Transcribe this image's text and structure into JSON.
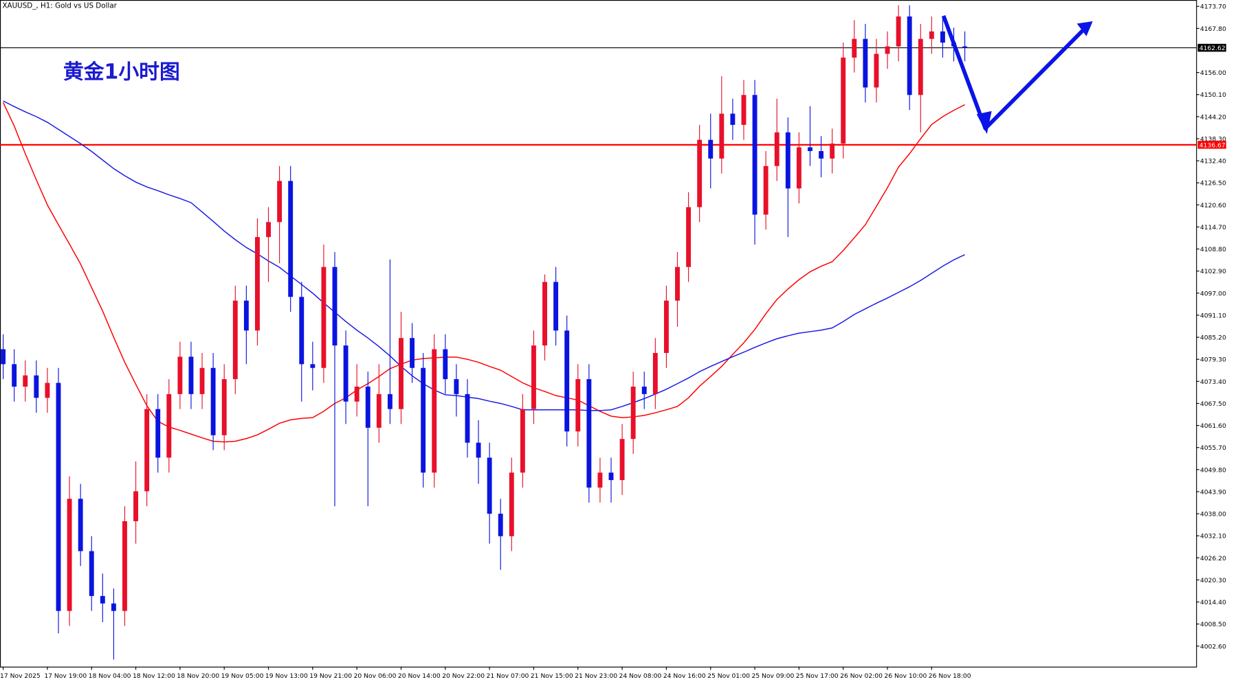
{
  "chart_data": {
    "type": "candlestick",
    "title": "XAUUSD_, H1:  Gold vs US Dollar",
    "annotation": "黄金1小时图",
    "categories": [
      "17 Nov 2025",
      null,
      null,
      null,
      "17 Nov 19:00",
      null,
      null,
      null,
      "18 Nov 04:00",
      null,
      null,
      null,
      "18 Nov 12:00",
      null,
      null,
      null,
      "18 Nov 20:00",
      null,
      null,
      null,
      "19 Nov 05:00",
      null,
      null,
      null,
      "19 Nov 13:00",
      null,
      null,
      null,
      "19 Nov 21:00",
      null,
      null,
      null,
      "20 Nov 06:00",
      null,
      null,
      null,
      "20 Nov 14:00",
      null,
      null,
      null,
      "20 Nov 22:00",
      null,
      null,
      null,
      "21 Nov 07:00",
      null,
      null,
      null,
      "21 Nov 15:00",
      null,
      null,
      null,
      "21 Nov 23:00",
      null,
      null,
      null,
      "24 Nov 08:00",
      null,
      null,
      null,
      "24 Nov 16:00",
      null,
      null,
      null,
      "25 Nov 01:00",
      null,
      null,
      null,
      "25 Nov 09:00",
      null,
      null,
      null,
      "25 Nov 17:00",
      null,
      null,
      null,
      "26 Nov 02:00",
      null,
      null,
      null,
      "26 Nov 10:00",
      null,
      null,
      null,
      "26 Nov 18:00",
      null,
      null,
      null
    ],
    "open": [
      4082,
      4078,
      4072,
      4075,
      4069,
      4073,
      4012,
      4042,
      4028,
      4016,
      4014,
      4012,
      4036,
      4044,
      4066,
      4053,
      4070,
      4080,
      4070,
      4077,
      4059,
      4074,
      4095,
      4087,
      4112,
      4116,
      4127,
      4096,
      4078,
      4077,
      4104,
      4083,
      4068,
      4072,
      4061,
      4070,
      4066,
      4085,
      4077,
      4049,
      4082,
      4074,
      4070,
      4057,
      4053,
      4038,
      4032,
      4049,
      4066,
      4083,
      4100,
      4087,
      4060,
      4074,
      4045,
      4049,
      4047,
      4058,
      4072,
      4070,
      4081,
      4095,
      4104,
      4120,
      4138,
      4133,
      4145,
      4142,
      4150,
      4118,
      4131,
      4140,
      4125,
      4136,
      4135,
      4133,
      4137,
      4160,
      4165,
      4152,
      4161,
      4163,
      4171,
      4150,
      4165,
      4167,
      4164,
      4163
    ],
    "high": [
      4086,
      4082,
      4079,
      4079,
      4077,
      4077,
      4048,
      4046,
      4032,
      4022,
      4018,
      4040,
      4052,
      4070,
      4070,
      4074,
      4084,
      4084,
      4081,
      4081,
      4078,
      4099,
      4099,
      4117,
      4120,
      4131,
      4131,
      4100,
      4084,
      4110,
      4108,
      4087,
      4078,
      4076,
      4078,
      4106,
      4092,
      4089,
      4081,
      4086,
      4086,
      4078,
      4074,
      4063,
      4057,
      4042,
      4053,
      4070,
      4087,
      4102,
      4104,
      4091,
      4078,
      4078,
      4053,
      4053,
      4062,
      4076,
      4076,
      4085,
      4099,
      4108,
      4124,
      4142,
      4145,
      4155,
      4149,
      4154,
      4154,
      4135,
      4149,
      4144,
      4140,
      4147,
      4139,
      4141,
      4164,
      4170,
      4169,
      4165,
      4167,
      4174,
      4174,
      4169,
      4171,
      4171,
      4168,
      4167
    ],
    "low": [
      4074,
      4068,
      4068,
      4065,
      4065,
      4006,
      4008,
      4024,
      4012,
      4009,
      3999,
      4008,
      4030,
      4040,
      4049,
      4049,
      4066,
      4066,
      4066,
      4055,
      4055,
      4070,
      4078,
      4083,
      4100,
      4105,
      4092,
      4068,
      4071,
      4073,
      4040,
      4062,
      4064,
      4040,
      4057,
      4062,
      4062,
      4073,
      4045,
      4045,
      4070,
      4064,
      4053,
      4046,
      4030,
      4023,
      4028,
      4045,
      4062,
      4079,
      4083,
      4056,
      4056,
      4041,
      4041,
      4041,
      4043,
      4054,
      4066,
      4066,
      4077,
      4088,
      4100,
      4116,
      4125,
      4129,
      4138,
      4138,
      4110,
      4114,
      4127,
      4112,
      4121,
      4131,
      4128,
      4129,
      4133,
      4156,
      4148,
      4148,
      4157,
      4159,
      4146,
      4140,
      4161,
      4160,
      4159,
      4159
    ],
    "close": [
      4078,
      4072,
      4075,
      4069,
      4073,
      4012,
      4042,
      4028,
      4016,
      4014,
      4012,
      4036,
      4044,
      4066,
      4053,
      4070,
      4080,
      4070,
      4077,
      4059,
      4074,
      4095,
      4087,
      4112,
      4116,
      4127,
      4096,
      4078,
      4077,
      4104,
      4083,
      4068,
      4072,
      4061,
      4070,
      4066,
      4085,
      4077,
      4049,
      4082,
      4074,
      4070,
      4057,
      4053,
      4038,
      4032,
      4049,
      4066,
      4083,
      4100,
      4087,
      4060,
      4074,
      4045,
      4049,
      4047,
      4058,
      4072,
      4070,
      4081,
      4095,
      4104,
      4120,
      4138,
      4133,
      4145,
      4142,
      4150,
      4118,
      4131,
      4140,
      4125,
      4136,
      4135,
      4133,
      4137,
      4160,
      4165,
      4152,
      4161,
      4163,
      4171,
      4150,
      4165,
      4167,
      4164,
      4163,
      4162.62
    ],
    "up_color": "#e8102a",
    "down_color": "#0a14e0",
    "moving_averages": [
      {
        "color": "#ff0000",
        "values": [
          4148.0,
          4141.7,
          4134.3,
          4127.3,
          4120.6,
          4115.3,
          4110.1,
          4104.8,
          4098.5,
          4092.2,
          4085.2,
          4078.5,
          4072.6,
          4066.9,
          4062.7,
          4061.2,
          4060.3,
          4059.3,
          4058.3,
          4057.4,
          4057.2,
          4057.4,
          4058.1,
          4059.1,
          4060.6,
          4062.2,
          4063.1,
          4063.5,
          4063.7,
          4065.4,
          4067.5,
          4069.0,
          4071.1,
          4072.8,
          4074.7,
          4076.8,
          4078.0,
          4079.1,
          4079.5,
          4079.7,
          4079.9,
          4079.9,
          4079.3,
          4078.5,
          4077.4,
          4076.4,
          4074.7,
          4073.0,
          4071.7,
          4070.7,
          4069.6,
          4069.0,
          4068.4,
          4066.9,
          4065.4,
          4064.1,
          4063.7,
          4063.9,
          4064.3,
          4065.0,
          4065.8,
          4066.7,
          4069.0,
          4072.1,
          4074.7,
          4077.4,
          4080.6,
          4083.7,
          4087.3,
          4091.5,
          4095.3,
          4098.1,
          4100.6,
          4102.7,
          4104.2,
          4105.4,
          4108.4,
          4111.8,
          4115.3,
          4120.2,
          4125.2,
          4130.7,
          4134.3,
          4138.3,
          4142.1,
          4144.2,
          4145.9,
          4147.4
        ]
      },
      {
        "color": "#1a1ae6",
        "values": [
          4148.4,
          4146.9,
          4145.5,
          4144.2,
          4142.7,
          4140.8,
          4138.9,
          4137.0,
          4134.9,
          4132.6,
          4130.3,
          4128.4,
          4126.7,
          4125.4,
          4124.4,
          4123.3,
          4122.3,
          4121.2,
          4118.7,
          4116.2,
          4113.6,
          4111.3,
          4109.2,
          4107.5,
          4105.6,
          4103.9,
          4101.6,
          4099.3,
          4097.0,
          4094.4,
          4091.9,
          4089.4,
          4087.1,
          4085.0,
          4082.7,
          4080.2,
          4077.4,
          4074.9,
          4072.8,
          4071.1,
          4069.8,
          4069.6,
          4069.2,
          4068.8,
          4068.1,
          4067.5,
          4066.7,
          4065.8,
          4065.8,
          4065.8,
          4065.8,
          4065.8,
          4065.8,
          4065.6,
          4065.6,
          4065.8,
          4066.7,
          4067.7,
          4068.8,
          4070.0,
          4071.3,
          4072.8,
          4074.3,
          4076.0,
          4077.4,
          4078.7,
          4080.0,
          4081.2,
          4082.5,
          4083.7,
          4084.8,
          4085.6,
          4086.3,
          4086.7,
          4087.1,
          4087.7,
          4089.4,
          4091.3,
          4092.8,
          4094.3,
          4095.7,
          4097.2,
          4098.7,
          4100.4,
          4102.3,
          4104.2,
          4105.9,
          4107.3
        ]
      }
    ],
    "hlines": [
      {
        "value": 4136.67,
        "label": "4136.67",
        "color": "#ff0000"
      },
      {
        "value": 4162.62,
        "label": "4162.62",
        "color": "#000000"
      }
    ],
    "ylim": [
      3997.1,
      4175.4
    ],
    "yticks": [
      {
        "value": 4173.7,
        "label": "4173.70"
      },
      {
        "value": 4167.8,
        "label": "4167.80"
      },
      {
        "value": 4156.0,
        "label": "4156.00"
      },
      {
        "value": 4150.1,
        "label": "4150.10"
      },
      {
        "value": 4144.2,
        "label": "4144.20"
      },
      {
        "value": 4138.3,
        "label": "4138.30"
      },
      {
        "value": 4132.4,
        "label": "4132.40"
      },
      {
        "value": 4126.5,
        "label": "4126.50"
      },
      {
        "value": 4120.6,
        "label": "4120.60"
      },
      {
        "value": 4114.7,
        "label": "4114.70"
      },
      {
        "value": 4108.8,
        "label": "4108.80"
      },
      {
        "value": 4102.9,
        "label": "4102.90"
      },
      {
        "value": 4097.0,
        "label": "4097.00"
      },
      {
        "value": 4091.1,
        "label": "4091.10"
      },
      {
        "value": 4085.2,
        "label": "4085.20"
      },
      {
        "value": 4079.3,
        "label": "4079.30"
      },
      {
        "value": 4073.4,
        "label": "4073.40"
      },
      {
        "value": 4067.5,
        "label": "4067.50"
      },
      {
        "value": 4061.6,
        "label": "4061.60"
      },
      {
        "value": 4055.7,
        "label": "4055.70"
      },
      {
        "value": 4049.8,
        "label": "4049.80"
      },
      {
        "value": 4043.9,
        "label": "4043.90"
      },
      {
        "value": 4038.0,
        "label": "4038.00"
      },
      {
        "value": 4032.1,
        "label": "4032.10"
      },
      {
        "value": 4026.2,
        "label": "4026.20"
      },
      {
        "value": 4020.3,
        "label": "4020.30"
      },
      {
        "value": 4014.4,
        "label": "4014.40"
      },
      {
        "value": 4008.5,
        "label": "4008.50"
      },
      {
        "value": 4002.6,
        "label": "4002.60"
      }
    ]
  }
}
